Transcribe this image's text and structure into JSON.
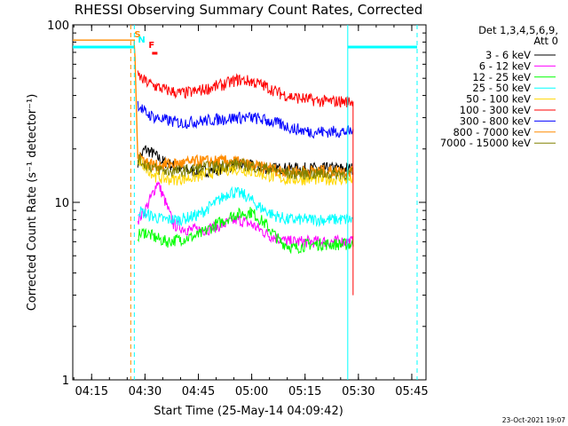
{
  "chart_data": {
    "type": "line",
    "title": "RHESSI Observing Summary Count Rates, Corrected",
    "xlabel": "Start Time (25-May-14 04:09:42)",
    "ylabel": "Corrected Count Rate (s⁻¹ detector⁻¹)",
    "y_scale": "log",
    "ylim": [
      1,
      100
    ],
    "xlim": [
      "04:09:42",
      "05:49:00"
    ],
    "x_ticks": [
      "04:15",
      "04:30",
      "04:45",
      "05:00",
      "05:15",
      "05:30",
      "05:45"
    ],
    "y_ticks": [
      "1",
      "10",
      "100"
    ],
    "grid": false,
    "legend_position": "right",
    "legend_header": [
      "Det 1,3,4,5,6,9,",
      "Att 0"
    ],
    "series": [
      {
        "name": "3 - 6 keV",
        "color": "#000000",
        "x": [
          "04:28:00",
          "04:30:00",
          "04:32:00",
          "04:35:00",
          "04:38:00",
          "04:42:00",
          "04:47:00",
          "04:52:00",
          "04:56:00",
          "05:00:00",
          "05:05:00",
          "05:10:00",
          "05:15:00",
          "05:20:00",
          "05:25:00",
          "05:28:30"
        ],
        "y": [
          17,
          20,
          19,
          17,
          16,
          15,
          15,
          15.5,
          16.5,
          16,
          15.5,
          15.5,
          15.5,
          15.5,
          15.5,
          15.5
        ]
      },
      {
        "name": "6 - 12 keV",
        "color": "#ff00ff",
        "x": [
          "04:28:00",
          "04:30:00",
          "04:32:00",
          "04:33:30",
          "04:35:00",
          "04:38:00",
          "04:42:00",
          "04:47:00",
          "04:52:00",
          "04:56:00",
          "05:00:00",
          "05:05:00",
          "05:10:00",
          "05:15:00",
          "05:20:00",
          "05:25:00",
          "05:28:30"
        ],
        "y": [
          8,
          9,
          11,
          13,
          11,
          7.5,
          7,
          7,
          7.5,
          8,
          7.5,
          6.5,
          6,
          6,
          6,
          6,
          6
        ]
      },
      {
        "name": "12 - 25 keV",
        "color": "#00ff00",
        "x": [
          "04:28:00",
          "04:30:00",
          "04:33:00",
          "04:36:00",
          "04:40:00",
          "04:45:00",
          "04:50:00",
          "04:55:00",
          "05:00:00",
          "05:04:00",
          "05:08:00",
          "05:12:00",
          "05:16:00",
          "05:20:00",
          "05:25:00",
          "05:28:30"
        ],
        "y": [
          6.5,
          6.8,
          6.3,
          6.0,
          6.2,
          6.5,
          7.5,
          8.5,
          8.8,
          7.5,
          6.0,
          5.5,
          5.8,
          5.8,
          5.8,
          5.8
        ]
      },
      {
        "name": "25 - 50 keV",
        "color": "#00ffff",
        "x": [
          "04:28:00",
          "04:31:00",
          "04:35:00",
          "04:40:00",
          "04:45:00",
          "04:50:00",
          "04:54:00",
          "04:58:00",
          "05:02:00",
          "05:06:00",
          "05:10:00",
          "05:15:00",
          "05:20:00",
          "05:25:00",
          "05:28:30"
        ],
        "y": [
          9,
          8.5,
          8,
          8,
          8.5,
          10,
          11.5,
          11,
          9.5,
          8.5,
          8,
          8,
          8,
          8,
          8
        ]
      },
      {
        "name": "50 - 100 keV",
        "color": "#ffd700",
        "x": [
          "04:28:00",
          "04:30:00",
          "04:33:00",
          "04:36:00",
          "04:40:00",
          "04:45:00",
          "04:50:00",
          "04:55:00",
          "05:00:00",
          "05:05:00",
          "05:10:00",
          "05:15:00",
          "05:20:00",
          "05:25:00",
          "05:28:30"
        ],
        "y": [
          17,
          16,
          14,
          13.5,
          13.5,
          14,
          15,
          15.5,
          15,
          14,
          13.5,
          13.5,
          13.5,
          13.5,
          13.5
        ]
      },
      {
        "name": "100 - 300 keV",
        "color": "#ff0000",
        "x": [
          "04:28:00",
          "04:30:00",
          "04:33:00",
          "04:36:00",
          "04:40:00",
          "04:44:00",
          "04:48:00",
          "04:52:00",
          "04:56:00",
          "05:00:00",
          "05:04:00",
          "05:08:00",
          "05:12:00",
          "05:16:00",
          "05:20:00",
          "05:25:00",
          "05:28:30"
        ],
        "y": [
          52,
          48,
          45,
          43,
          41,
          42,
          44,
          46,
          49,
          48,
          45,
          41,
          39,
          38,
          37,
          37,
          37
        ]
      },
      {
        "name": "300 - 800 keV",
        "color": "#0000ff",
        "x": [
          "04:28:00",
          "04:30:00",
          "04:33:00",
          "04:36:00",
          "04:40:00",
          "04:44:00",
          "04:48:00",
          "04:52:00",
          "04:56:00",
          "05:00:00",
          "05:04:00",
          "05:08:00",
          "05:12:00",
          "05:16:00",
          "05:20:00",
          "05:25:00",
          "05:28:30"
        ],
        "y": [
          36,
          32,
          30,
          29,
          28,
          28.5,
          29,
          29.5,
          30,
          30,
          29,
          27.5,
          26,
          25,
          25,
          25,
          25
        ]
      },
      {
        "name": "800 - 7000 keV",
        "color": "#ff8c00",
        "x": [
          "04:09:42",
          "04:27:00",
          "04:28:00",
          "04:30:00",
          "04:33:00",
          "04:36:00",
          "04:40:00",
          "04:45:00",
          "04:50:00",
          "04:55:00",
          "05:00:00",
          "05:05:00",
          "05:10:00",
          "05:15:00",
          "05:20:00",
          "05:25:00",
          "05:28:30"
        ],
        "y": [
          82,
          82,
          19,
          17,
          16,
          16.5,
          16.5,
          17,
          17,
          17,
          16,
          15.5,
          15,
          15,
          15,
          15,
          15
        ]
      },
      {
        "name": "7000 - 15000 keV",
        "color": "#808000",
        "x": [
          "04:28:00",
          "04:30:00",
          "04:33:00",
          "04:36:00",
          "04:40:00",
          "04:45:00",
          "04:50:00",
          "04:55:00",
          "05:00:00",
          "05:05:00",
          "05:10:00",
          "05:15:00",
          "05:20:00",
          "05:25:00",
          "05:28:30"
        ],
        "y": [
          17.5,
          16.5,
          15.5,
          15,
          15,
          15.5,
          16,
          16.5,
          16,
          15.5,
          14.5,
          14.5,
          14.5,
          14.5,
          14.5
        ]
      }
    ],
    "flags": [
      {
        "label": "S",
        "color": "#ff8c00",
        "x": "04:27:00"
      },
      {
        "label": "N",
        "color": "#00ffff",
        "x": "04:28:00"
      },
      {
        "label": "F",
        "color": "#ff0000",
        "x": "04:31:00"
      }
    ],
    "saa_markers": [
      {
        "color": "#ff8c00",
        "x": "04:26:00",
        "style": "dashed"
      },
      {
        "color": "#00ffff",
        "x": "04:27:00",
        "style": "dashed"
      },
      {
        "color": "#00ffff",
        "x": "05:27:00",
        "style": "solid"
      },
      {
        "color": "#00ffff",
        "x": "05:46:30",
        "style": "dashed"
      }
    ],
    "night_level_left": {
      "color": "#00ffff",
      "x": [
        "04:09:42",
        "04:27:00"
      ],
      "y": 75
    },
    "night_level_right": {
      "color": "#00ffff",
      "x": [
        "05:27:00",
        "05:46:30"
      ],
      "y": 75
    }
  },
  "footer": {
    "timestamp": "23-Oct-2021 19:07"
  }
}
